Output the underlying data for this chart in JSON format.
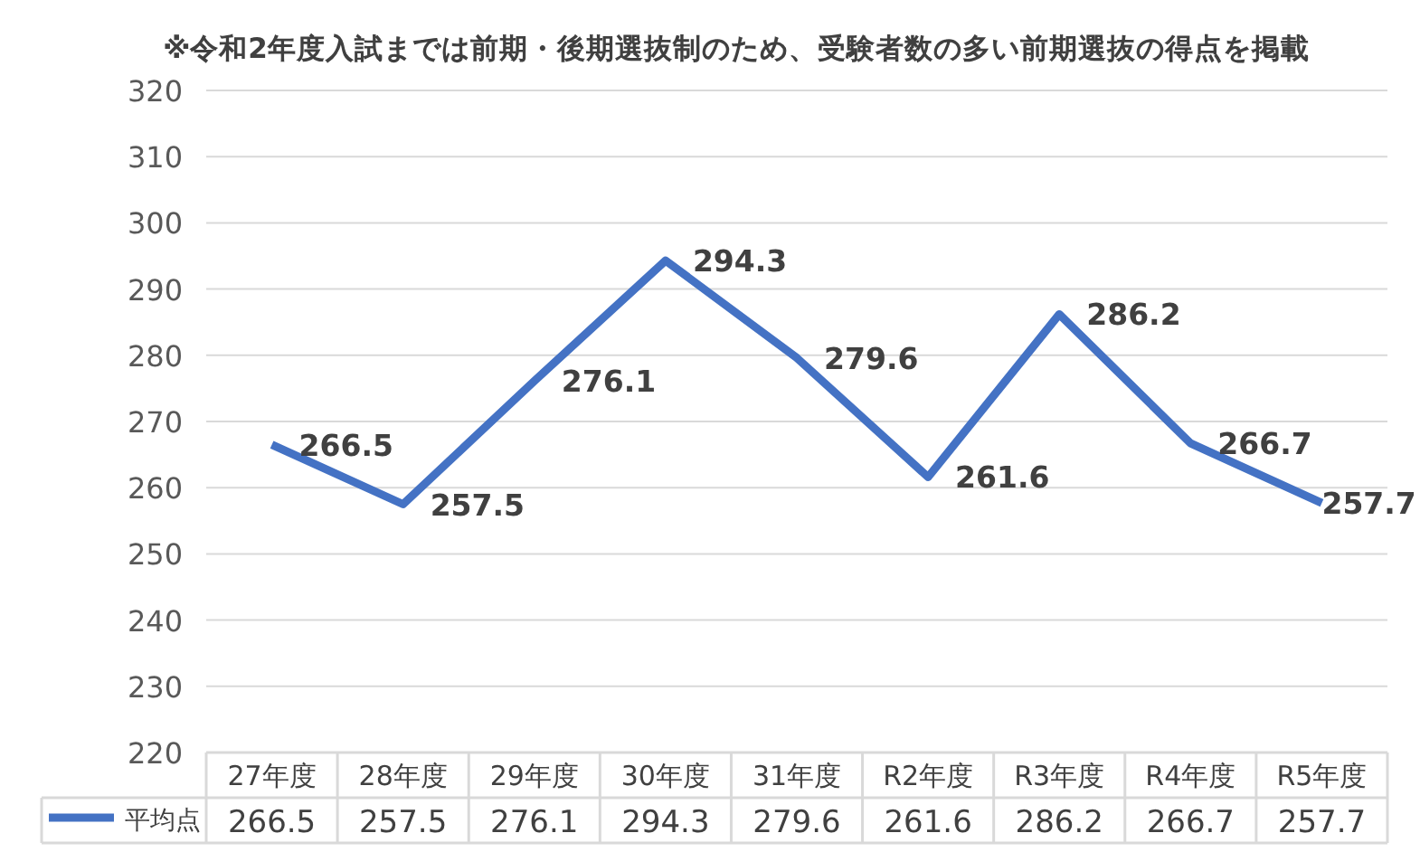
{
  "chart_data": {
    "type": "line",
    "title": "※令和2年度入試までは前期・後期選抜制のため、受験者数の多い前期選抜の得点を掲載",
    "categories": [
      "27年度",
      "28年度",
      "29年度",
      "30年度",
      "31年度",
      "R2年度",
      "R3年度",
      "R4年度",
      "R5年度"
    ],
    "series": [
      {
        "name": "平均点",
        "color": "#4472c4",
        "values": [
          266.5,
          257.5,
          276.1,
          294.3,
          279.6,
          261.6,
          286.2,
          266.7,
          257.7
        ]
      }
    ],
    "annotations": [
      {
        "text": "266.5",
        "x": "27年度",
        "y": 266.5
      },
      {
        "text": "257.5",
        "x": "28年度",
        "y": 257.5
      },
      {
        "text": "276.1",
        "x": "29年度",
        "y": 276.1
      },
      {
        "text": "294.3",
        "x": "30年度",
        "y": 294.3
      },
      {
        "text": "279.6",
        "x": "31年度",
        "y": 279.6
      },
      {
        "text": "261.6",
        "x": "R2年度",
        "y": 261.6
      },
      {
        "text": "286.2",
        "x": "R3年度",
        "y": 286.2
      },
      {
        "text": "266.7",
        "x": "R4年度",
        "y": 266.7
      },
      {
        "text": "257.7",
        "x": "R5年度",
        "y": 257.7
      }
    ],
    "ylim": [
      220,
      320
    ],
    "yticks": [
      220,
      230,
      240,
      250,
      260,
      270,
      280,
      290,
      300,
      310,
      320
    ],
    "grid": "y",
    "data_labels": true,
    "legend": "bottom",
    "line_style": "solid"
  }
}
